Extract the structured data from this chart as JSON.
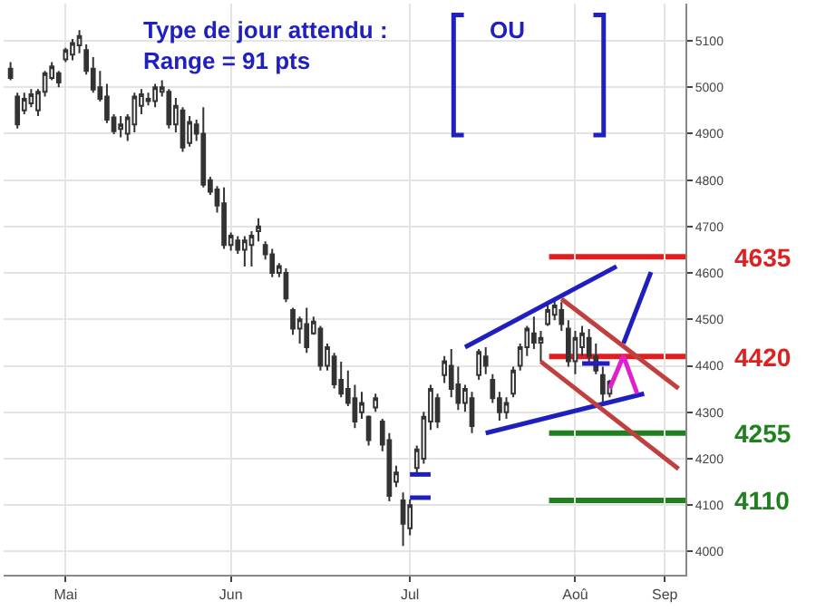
{
  "chart_data": {
    "type": "candlestick",
    "title": "Type de jour attendu :\nRange = 91 pts",
    "categories": [
      null,
      null,
      null,
      null,
      null,
      null,
      null,
      null,
      "Mai",
      null,
      null,
      null,
      null,
      null,
      null,
      null,
      null,
      null,
      null,
      null,
      null,
      null,
      null,
      null,
      null,
      null,
      null,
      null,
      null,
      null,
      null,
      null,
      "Jun",
      null,
      null,
      null,
      null,
      null,
      null,
      null,
      null,
      null,
      null,
      null,
      null,
      null,
      null,
      null,
      null,
      null,
      null,
      null,
      null,
      null,
      null,
      null,
      null,
      null,
      "Jul",
      null,
      null,
      null,
      null,
      null,
      null,
      null,
      null,
      null,
      null,
      null,
      null,
      null,
      null,
      null,
      null,
      null,
      null,
      null,
      null,
      null,
      null,
      null,
      "Aoû",
      null,
      null,
      null,
      null,
      null,
      null,
      null,
      null,
      null,
      null,
      null,
      null,
      "Sep",
      null,
      null
    ],
    "ohlc": [
      [
        5040,
        5054,
        5015,
        5020
      ],
      [
        4980,
        4988,
        4911,
        4920
      ],
      [
        4950,
        4988,
        4942,
        4975
      ],
      [
        4965,
        4996,
        4957,
        4985
      ],
      [
        4950,
        4996,
        4938,
        4990
      ],
      [
        4990,
        5035,
        4980,
        5030
      ],
      [
        5020,
        5054,
        5015,
        5045
      ],
      [
        5030,
        5035,
        5000,
        5010
      ],
      [
        5060,
        5085,
        5054,
        5080
      ],
      [
        5070,
        5104,
        5058,
        5095
      ],
      [
        5090,
        5123,
        5073,
        5110
      ],
      [
        5080,
        5092,
        5027,
        5035
      ],
      [
        5040,
        5065,
        4988,
        4995
      ],
      [
        5000,
        5035,
        4969,
        4975
      ],
      [
        4980,
        5007,
        4923,
        4930
      ],
      [
        4935,
        4942,
        4899,
        4905
      ],
      [
        4910,
        4938,
        4892,
        4920
      ],
      [
        4900,
        4942,
        4884,
        4935
      ],
      [
        4920,
        4988,
        4903,
        4980
      ],
      [
        4960,
        4996,
        4942,
        4985
      ],
      [
        4970,
        4988,
        4961,
        4975
      ],
      [
        4970,
        5007,
        4957,
        5000
      ],
      [
        4990,
        5015,
        4980,
        5000
      ],
      [
        4990,
        4996,
        4911,
        4920
      ],
      [
        4920,
        4977,
        4903,
        4960
      ],
      [
        4950,
        4957,
        4861,
        4870
      ],
      [
        4880,
        4938,
        4872,
        4925
      ],
      [
        4920,
        4930,
        4884,
        4900
      ],
      [
        4900,
        4957,
        4784,
        4790
      ],
      [
        4800,
        4807,
        4768,
        4775
      ],
      [
        4780,
        4787,
        4730,
        4745
      ],
      [
        4750,
        4784,
        4652,
        4660
      ],
      [
        4660,
        4687,
        4648,
        4680
      ],
      [
        4670,
        4679,
        4641,
        4650
      ],
      [
        4650,
        4679,
        4614,
        4670
      ],
      [
        4660,
        4690,
        4614,
        4680
      ],
      [
        4690,
        4718,
        4668,
        4700
      ],
      [
        4660,
        4668,
        4629,
        4640
      ],
      [
        4640,
        4652,
        4591,
        4600
      ],
      [
        4600,
        4621,
        4591,
        4615
      ],
      [
        4600,
        4610,
        4537,
        4545
      ],
      [
        4520,
        4525,
        4467,
        4480
      ],
      [
        4480,
        4506,
        4448,
        4500
      ],
      [
        4490,
        4525,
        4428,
        4440
      ],
      [
        4470,
        4506,
        4467,
        4495
      ],
      [
        4480,
        4486,
        4390,
        4400
      ],
      [
        4400,
        4448,
        4390,
        4440
      ],
      [
        4420,
        4428,
        4351,
        4360
      ],
      [
        4370,
        4409,
        4332,
        4340
      ],
      [
        4350,
        4390,
        4313,
        4320
      ],
      [
        4330,
        4359,
        4266,
        4280
      ],
      [
        4300,
        4344,
        4286,
        4320
      ],
      [
        4290,
        4293,
        4228,
        4240
      ],
      [
        4310,
        4340,
        4301,
        4330
      ],
      [
        4280,
        4286,
        4216,
        4230
      ],
      [
        4240,
        4255,
        4108,
        4120
      ],
      [
        4150,
        4185,
        4139,
        4170
      ],
      [
        4110,
        4127,
        4012,
        4060
      ],
      [
        4050,
        4112,
        4035,
        4100
      ],
      [
        4180,
        4228,
        4166,
        4220
      ],
      [
        4200,
        4301,
        4189,
        4290
      ],
      [
        4280,
        4359,
        4262,
        4350
      ],
      [
        4330,
        4340,
        4266,
        4280
      ],
      [
        4380,
        4421,
        4363,
        4410
      ],
      [
        4400,
        4436,
        4332,
        4350
      ],
      [
        4360,
        4398,
        4305,
        4320
      ],
      [
        4320,
        4359,
        4301,
        4350
      ],
      [
        4330,
        4344,
        4255,
        4270
      ],
      [
        4380,
        4436,
        4370,
        4430
      ],
      [
        4420,
        4440,
        4382,
        4400
      ],
      [
        4370,
        4382,
        4320,
        4330
      ],
      [
        4330,
        4344,
        4282,
        4300
      ],
      [
        4300,
        4332,
        4286,
        4320
      ],
      [
        4340,
        4398,
        4332,
        4390
      ],
      [
        4400,
        4448,
        4390,
        4440
      ],
      [
        4440,
        4486,
        4421,
        4480
      ],
      [
        4470,
        4506,
        4436,
        4450
      ],
      [
        4450,
        4475,
        4409,
        4460
      ],
      [
        4490,
        4533,
        4486,
        4520
      ],
      [
        4510,
        4544,
        4498,
        4530
      ],
      [
        4520,
        4537,
        4475,
        4490
      ],
      [
        4480,
        4498,
        4398,
        4410
      ],
      [
        4410,
        4475,
        4382,
        4460
      ],
      [
        4440,
        4486,
        4421,
        4470
      ],
      [
        4460,
        4479,
        4409,
        4420
      ],
      [
        4420,
        4448,
        4382,
        4390
      ],
      [
        4380,
        4398,
        4320,
        4340
      ],
      [
        4340,
        4370,
        4332,
        4366
      ],
      null,
      null,
      null,
      null,
      null,
      null,
      null,
      null,
      null,
      null
    ],
    "color": "#333333",
    "series": [
      {
        "type": "line",
        "color": "#1f1fbf",
        "values": [
          null,
          null,
          null,
          null,
          null,
          null,
          null,
          null,
          null,
          null,
          null,
          null,
          null,
          null,
          null,
          null,
          null,
          null,
          null,
          null,
          null,
          null,
          null,
          null,
          null,
          null,
          null,
          null,
          null,
          null,
          null,
          null,
          null,
          null,
          null,
          null,
          null,
          null,
          null,
          null,
          null,
          null,
          null,
          null,
          null,
          null,
          null,
          null,
          null,
          null,
          null,
          null,
          null,
          null,
          null,
          null,
          null,
          null,
          null,
          null,
          null,
          null,
          null,
          null,
          null,
          null,
          4440,
          null,
          null,
          null,
          null,
          null,
          null,
          null,
          null,
          null,
          null,
          null,
          null,
          null,
          null,
          null,
          null,
          null,
          null,
          null,
          null,
          null,
          4614,
          null,
          null,
          null,
          null,
          null,
          null,
          null,
          null,
          null
        ]
      },
      {
        "type": "line",
        "color": "#1f1fbf",
        "values": [
          null,
          null,
          null,
          null,
          null,
          null,
          null,
          null,
          null,
          null,
          null,
          null,
          null,
          null,
          null,
          null,
          null,
          null,
          null,
          null,
          null,
          null,
          null,
          null,
          null,
          null,
          null,
          null,
          null,
          null,
          null,
          null,
          null,
          null,
          null,
          null,
          null,
          null,
          null,
          null,
          null,
          null,
          null,
          null,
          null,
          null,
          null,
          null,
          null,
          null,
          null,
          null,
          null,
          null,
          null,
          null,
          null,
          null,
          null,
          null,
          null,
          null,
          null,
          null,
          null,
          null,
          null,
          null,
          null,
          4255,
          null,
          null,
          null,
          null,
          null,
          null,
          null,
          null,
          null,
          null,
          null,
          null,
          null,
          null,
          null,
          null,
          null,
          null,
          null,
          null,
          null,
          null,
          4340,
          null,
          null,
          null,
          null,
          null
        ]
      },
      {
        "type": "line",
        "color": "#1f1fbf",
        "values": [
          null,
          null,
          null,
          null,
          null,
          null,
          null,
          null,
          null,
          null,
          null,
          null,
          null,
          null,
          null,
          null,
          null,
          null,
          null,
          null,
          null,
          null,
          null,
          null,
          null,
          null,
          null,
          null,
          null,
          null,
          null,
          null,
          null,
          null,
          null,
          null,
          null,
          null,
          null,
          null,
          null,
          null,
          null,
          null,
          null,
          null,
          null,
          null,
          null,
          null,
          null,
          null,
          null,
          null,
          null,
          null,
          null,
          null,
          null,
          null,
          null,
          null,
          null,
          null,
          null,
          null,
          null,
          null,
          null,
          null,
          null,
          null,
          null,
          null,
          null,
          null,
          null,
          null,
          null,
          null,
          null,
          null,
          null,
          null,
          null,
          null,
          null,
          null,
          null,
          4448,
          null,
          null,
          null,
          4602,
          null,
          null,
          null,
          null
        ]
      },
      {
        "type": "line",
        "color": "#c04040",
        "values": [
          null,
          null,
          null,
          null,
          null,
          null,
          null,
          null,
          null,
          null,
          null,
          null,
          null,
          null,
          null,
          null,
          null,
          null,
          null,
          null,
          null,
          null,
          null,
          null,
          null,
          null,
          null,
          null,
          null,
          null,
          null,
          null,
          null,
          null,
          null,
          null,
          null,
          null,
          null,
          null,
          null,
          null,
          null,
          null,
          null,
          null,
          null,
          null,
          null,
          null,
          null,
          null,
          null,
          null,
          null,
          null,
          null,
          null,
          null,
          null,
          null,
          null,
          null,
          null,
          null,
          null,
          null,
          null,
          null,
          null,
          null,
          null,
          null,
          null,
          null,
          null,
          null,
          null,
          null,
          null,
          4544,
          null,
          null,
          null,
          null,
          null,
          null,
          null,
          null,
          null,
          null,
          null,
          null,
          null,
          null,
          null,
          null,
          4351
        ]
      },
      {
        "type": "line",
        "color": "#c04040",
        "values": [
          null,
          null,
          null,
          null,
          null,
          null,
          null,
          null,
          null,
          null,
          null,
          null,
          null,
          null,
          null,
          null,
          null,
          null,
          null,
          null,
          null,
          null,
          null,
          null,
          null,
          null,
          null,
          null,
          null,
          null,
          null,
          null,
          null,
          null,
          null,
          null,
          null,
          null,
          null,
          null,
          null,
          null,
          null,
          null,
          null,
          null,
          null,
          null,
          null,
          null,
          null,
          null,
          null,
          null,
          null,
          null,
          null,
          null,
          null,
          null,
          null,
          null,
          null,
          null,
          null,
          null,
          null,
          null,
          null,
          null,
          null,
          null,
          null,
          null,
          null,
          null,
          null,
          4409,
          null,
          null,
          null,
          null,
          null,
          null,
          null,
          null,
          null,
          null,
          null,
          null,
          null,
          null,
          null,
          null,
          null,
          null,
          null,
          4178
        ]
      },
      {
        "type": "line",
        "color": "#e020d0",
        "values": [
          null,
          null,
          null,
          null,
          null,
          null,
          null,
          null,
          null,
          null,
          null,
          null,
          null,
          null,
          null,
          null,
          null,
          null,
          null,
          null,
          null,
          null,
          null,
          null,
          null,
          null,
          null,
          null,
          null,
          null,
          null,
          null,
          null,
          null,
          null,
          null,
          null,
          null,
          null,
          null,
          null,
          null,
          null,
          null,
          null,
          null,
          null,
          null,
          null,
          null,
          null,
          null,
          null,
          null,
          null,
          null,
          null,
          null,
          null,
          null,
          null,
          null,
          null,
          null,
          null,
          null,
          null,
          null,
          null,
          null,
          null,
          null,
          null,
          null,
          null,
          null,
          null,
          null,
          null,
          null,
          null,
          null,
          null,
          null,
          null,
          null,
          null,
          4351,
          null,
          4421,
          null,
          4340,
          null,
          null,
          null,
          null,
          null,
          null
        ]
      },
      {
        "type": "line",
        "color": "#1f1fbf",
        "values": [
          null,
          null,
          null,
          null,
          null,
          null,
          null,
          null,
          null,
          null,
          null,
          null,
          null,
          null,
          null,
          null,
          null,
          null,
          null,
          null,
          null,
          null,
          null,
          null,
          null,
          null,
          null,
          null,
          null,
          null,
          null,
          null,
          null,
          null,
          null,
          null,
          null,
          null,
          null,
          null,
          null,
          null,
          null,
          null,
          null,
          null,
          null,
          null,
          null,
          null,
          null,
          null,
          null,
          null,
          null,
          null,
          null,
          null,
          4166,
          null,
          null,
          4166,
          null,
          null,
          null,
          null,
          null,
          null,
          null,
          null,
          null,
          null,
          null,
          null,
          null,
          null,
          null,
          null,
          null,
          null,
          null,
          null,
          null,
          null,
          null,
          null,
          null,
          null,
          null,
          null,
          null,
          null,
          null,
          null,
          null,
          null,
          null,
          null
        ]
      },
      {
        "type": "line",
        "color": "#1f1fbf",
        "values": [
          null,
          null,
          null,
          null,
          null,
          null,
          null,
          null,
          null,
          null,
          null,
          null,
          null,
          null,
          null,
          null,
          null,
          null,
          null,
          null,
          null,
          null,
          null,
          null,
          null,
          null,
          null,
          null,
          null,
          null,
          null,
          null,
          null,
          null,
          null,
          null,
          null,
          null,
          null,
          null,
          null,
          null,
          null,
          null,
          null,
          null,
          null,
          null,
          null,
          null,
          null,
          null,
          null,
          null,
          null,
          null,
          null,
          null,
          4116,
          null,
          null,
          4116,
          null,
          null,
          null,
          null,
          null,
          null,
          null,
          null,
          null,
          null,
          null,
          null,
          null,
          null,
          null,
          null,
          null,
          null,
          null,
          null,
          null,
          null,
          null,
          null,
          null,
          null,
          null,
          null,
          null,
          null,
          null,
          null,
          null,
          null,
          null,
          null
        ]
      },
      {
        "type": "line",
        "color": "#1f1fbf",
        "values": [
          null,
          null,
          null,
          null,
          null,
          null,
          null,
          null,
          null,
          null,
          null,
          null,
          null,
          null,
          null,
          null,
          null,
          null,
          null,
          null,
          null,
          null,
          null,
          null,
          null,
          null,
          null,
          null,
          null,
          null,
          null,
          null,
          null,
          null,
          null,
          null,
          null,
          null,
          null,
          null,
          null,
          null,
          null,
          null,
          null,
          null,
          null,
          null,
          null,
          null,
          null,
          null,
          null,
          null,
          null,
          null,
          null,
          null,
          null,
          null,
          null,
          null,
          null,
          null,
          null,
          null,
          null,
          null,
          null,
          null,
          null,
          null,
          null,
          null,
          null,
          null,
          null,
          null,
          null,
          null,
          null,
          null,
          null,
          4405,
          null,
          null,
          null,
          4405,
          null,
          null,
          null,
          null,
          null,
          null,
          null,
          null,
          null,
          null
        ]
      }
    ],
    "ref_lines": [
      {
        "axis": "y",
        "value": 4635,
        "label": "4635",
        "color": "#e02020"
      },
      {
        "axis": "y",
        "value": 4420,
        "label": "4420",
        "color": "#e02020"
      },
      {
        "axis": "y",
        "value": 4255,
        "label": "4255",
        "color": "#208020"
      },
      {
        "axis": "y",
        "value": 4110,
        "label": "4110",
        "color": "#208020"
      }
    ],
    "annotations": [
      "OU"
    ],
    "ylim": [
      3950,
      5180
    ],
    "yticks": [
      4000,
      4100,
      4200,
      4300,
      4400,
      4500,
      4600,
      4700,
      4800,
      4900,
      5000,
      5100
    ],
    "grid": true
  }
}
